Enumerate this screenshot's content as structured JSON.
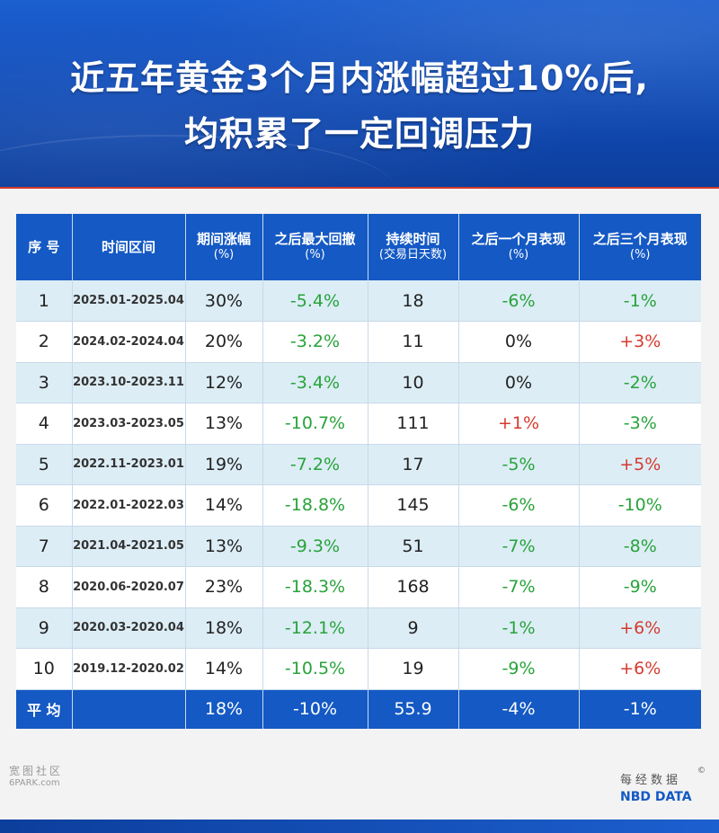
{
  "title": {
    "line1": "近五年黄金3个月内涨幅超过10%后,",
    "line2": "均积累了一定回调压力"
  },
  "columns": [
    {
      "label": "序 号",
      "sub": ""
    },
    {
      "label": "时间区间",
      "sub": ""
    },
    {
      "label": "期间涨幅",
      "sub": "(%)"
    },
    {
      "label": "之后最大回撤",
      "sub": "(%)"
    },
    {
      "label": "持续时间",
      "sub": "(交易日天数)"
    },
    {
      "label": "之后一个月表现",
      "sub": "(%)"
    },
    {
      "label": "之后三个月表现",
      "sub": "(%)"
    }
  ],
  "rows": [
    {
      "seq": "1",
      "range": "2025.01-2025.04",
      "gain": "30%",
      "drawdown": "-5.4%",
      "days": "18",
      "m1": "-6%",
      "m3": "-1%"
    },
    {
      "seq": "2",
      "range": "2024.02-2024.04",
      "gain": "20%",
      "drawdown": "-3.2%",
      "days": "11",
      "m1": "0%",
      "m3": "+3%"
    },
    {
      "seq": "3",
      "range": "2023.10-2023.11",
      "gain": "12%",
      "drawdown": "-3.4%",
      "days": "10",
      "m1": "0%",
      "m3": "-2%"
    },
    {
      "seq": "4",
      "range": "2023.03-2023.05",
      "gain": "13%",
      "drawdown": "-10.7%",
      "days": "111",
      "m1": "+1%",
      "m3": "-3%"
    },
    {
      "seq": "5",
      "range": "2022.11-2023.01",
      "gain": "19%",
      "drawdown": "-7.2%",
      "days": "17",
      "m1": "-5%",
      "m3": "+5%"
    },
    {
      "seq": "6",
      "range": "2022.01-2022.03",
      "gain": "14%",
      "drawdown": "-18.8%",
      "days": "145",
      "m1": "-6%",
      "m3": "-10%"
    },
    {
      "seq": "7",
      "range": "2021.04-2021.05",
      "gain": "13%",
      "drawdown": "-9.3%",
      "days": "51",
      "m1": "-7%",
      "m3": "-8%"
    },
    {
      "seq": "8",
      "range": "2020.06-2020.07",
      "gain": "23%",
      "drawdown": "-18.3%",
      "days": "168",
      "m1": "-7%",
      "m3": "-9%"
    },
    {
      "seq": "9",
      "range": "2020.03-2020.04",
      "gain": "18%",
      "drawdown": "-12.1%",
      "days": "9",
      "m1": "-1%",
      "m3": "+6%"
    },
    {
      "seq": "10",
      "range": "2019.12-2020.02",
      "gain": "14%",
      "drawdown": "-10.5%",
      "days": "19",
      "m1": "-9%",
      "m3": "+6%"
    }
  ],
  "average": {
    "label": "平 均",
    "range": "",
    "gain": "18%",
    "drawdown": "-10%",
    "days": "55.9",
    "m1": "-4%",
    "m3": "-1%"
  },
  "colors": {
    "header_bg": "#1459c4",
    "negative": "#28a33a",
    "positive": "#d63b2f",
    "row_alt": "#dcedf6"
  },
  "watermark": {
    "cn": "宽图社区",
    "en": "6PARK.com"
  },
  "brand": {
    "cn": "每经数据",
    "mark": "©",
    "en": "NBD DATA"
  }
}
